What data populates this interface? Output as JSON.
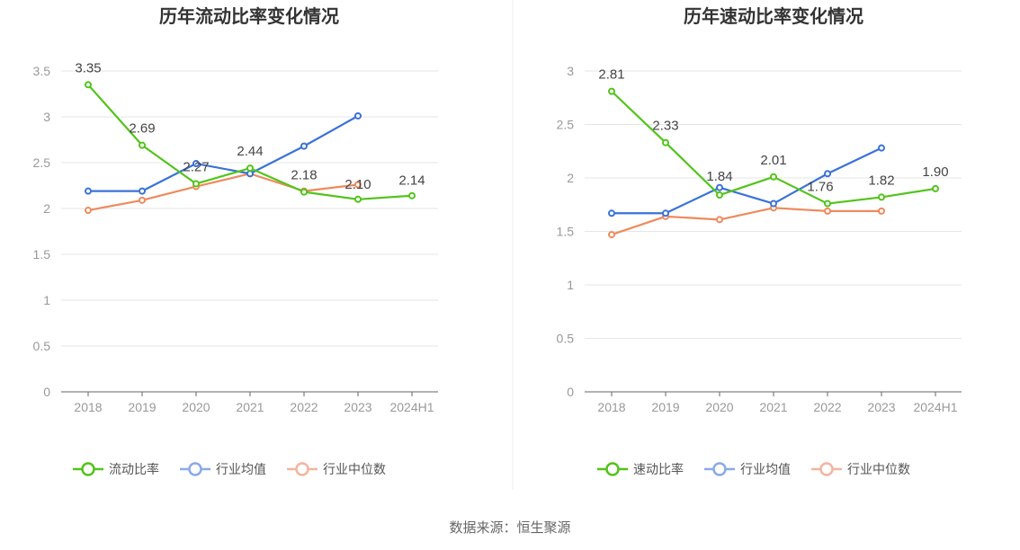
{
  "footer": {
    "source": "数据来源：恒生聚源"
  },
  "colors": {
    "series_green": "#52c41a",
    "series_blue": "#3a72d8",
    "series_orange": "#ee8a5c",
    "legend_blue": "#8aaae8",
    "legend_orange": "#f5b4a0",
    "grid": "#e6e6e6",
    "axis": "#666666"
  },
  "chart_data": [
    {
      "type": "line",
      "title": "历年流动比率变化情况",
      "categories": [
        "2018",
        "2019",
        "2020",
        "2021",
        "2022",
        "2023",
        "2024H1"
      ],
      "ylim": [
        0,
        3.5
      ],
      "yticks": [
        "0",
        "0.5",
        "1",
        "1.5",
        "2",
        "2.5",
        "3",
        "3.5"
      ],
      "grid": "horizontal",
      "legend_position": "bottom",
      "series": [
        {
          "name": "流动比率",
          "values": [
            3.35,
            2.69,
            2.27,
            2.44,
            2.18,
            2.1,
            2.14
          ],
          "labels": [
            "3.35",
            "2.69",
            "2.27",
            "2.44",
            "2.18",
            "2.10",
            "2.14"
          ]
        },
        {
          "name": "行业均值",
          "values": [
            2.19,
            2.19,
            2.49,
            2.38,
            2.68,
            3.01,
            null
          ]
        },
        {
          "name": "行业中位数",
          "values": [
            1.98,
            2.09,
            2.24,
            2.38,
            2.19,
            2.26,
            null
          ]
        }
      ]
    },
    {
      "type": "line",
      "title": "历年速动比率变化情况",
      "categories": [
        "2018",
        "2019",
        "2020",
        "2021",
        "2022",
        "2023",
        "2024H1"
      ],
      "ylim": [
        0,
        3
      ],
      "yticks": [
        "0",
        "0.5",
        "1",
        "1.5",
        "2",
        "2.5",
        "3"
      ],
      "grid": "horizontal",
      "legend_position": "bottom",
      "series": [
        {
          "name": "速动比率",
          "values": [
            2.81,
            2.33,
            1.84,
            2.01,
            1.76,
            1.82,
            1.9
          ],
          "labels": [
            "2.81",
            "2.33",
            "1.84",
            "2.01",
            "1.76",
            "1.82",
            "1.90"
          ]
        },
        {
          "name": "行业均值",
          "values": [
            1.67,
            1.67,
            1.91,
            1.76,
            2.04,
            2.28,
            null
          ]
        },
        {
          "name": "行业中位数",
          "values": [
            1.47,
            1.64,
            1.61,
            1.72,
            1.69,
            1.69,
            null
          ]
        }
      ]
    }
  ]
}
